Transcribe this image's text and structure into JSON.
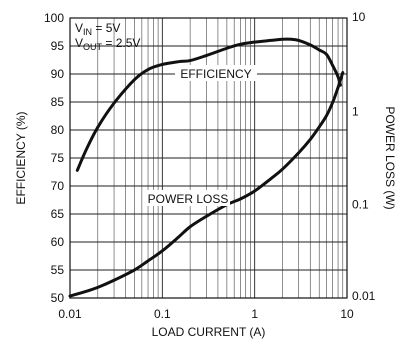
{
  "chart_data": {
    "type": "line",
    "xlabel": "LOAD CURRENT (A)",
    "ylabel_left": "EFFICIENCY (%)",
    "ylabel_right": "POWER LOSS (W)",
    "x_scale": "log",
    "xlim": [
      0.01,
      10
    ],
    "ylim_left": [
      50,
      100
    ],
    "y_right_scale": "log",
    "ylim_right": [
      0.01,
      10
    ],
    "x_ticks": [
      "0.01",
      "0.1",
      "1",
      "10"
    ],
    "y_left_ticks": [
      "50",
      "55",
      "60",
      "65",
      "70",
      "75",
      "80",
      "85",
      "90",
      "95",
      "100"
    ],
    "y_right_ticks": [
      "0.01",
      "0.1",
      "1",
      "10"
    ],
    "grid": true,
    "annotations": {
      "vin": {
        "main": "V",
        "sub": "IN",
        "rest": " = 5V"
      },
      "vout": {
        "main": "V",
        "sub": "OUT",
        "rest": " = 2.5V"
      }
    },
    "series": [
      {
        "name": "EFFICIENCY",
        "axis": "left",
        "x": [
          0.012,
          0.015,
          0.02,
          0.03,
          0.05,
          0.07,
          0.1,
          0.15,
          0.2,
          0.3,
          0.5,
          0.7,
          1,
          1.5,
          2,
          2.5,
          3,
          4,
          5,
          6,
          7,
          8,
          8.5
        ],
        "y": [
          72.8,
          76.5,
          80.5,
          84.8,
          89.0,
          90.8,
          91.7,
          92.2,
          92.4,
          93.3,
          94.6,
          95.3,
          95.7,
          96.0,
          96.2,
          96.2,
          96.0,
          95.2,
          94.3,
          93.5,
          91.5,
          89.5,
          88.0
        ]
      },
      {
        "name": "POWER LOSS",
        "axis": "right",
        "x": [
          0.01,
          0.015,
          0.02,
          0.03,
          0.05,
          0.07,
          0.1,
          0.15,
          0.2,
          0.3,
          0.5,
          0.7,
          1,
          1.5,
          2,
          3,
          4,
          5,
          6,
          7,
          8,
          9
        ],
        "y": [
          0.0105,
          0.0118,
          0.013,
          0.0155,
          0.02,
          0.025,
          0.032,
          0.045,
          0.058,
          0.075,
          0.1,
          0.115,
          0.14,
          0.19,
          0.24,
          0.36,
          0.5,
          0.68,
          0.9,
          1.25,
          1.8,
          2.6
        ]
      }
    ]
  }
}
